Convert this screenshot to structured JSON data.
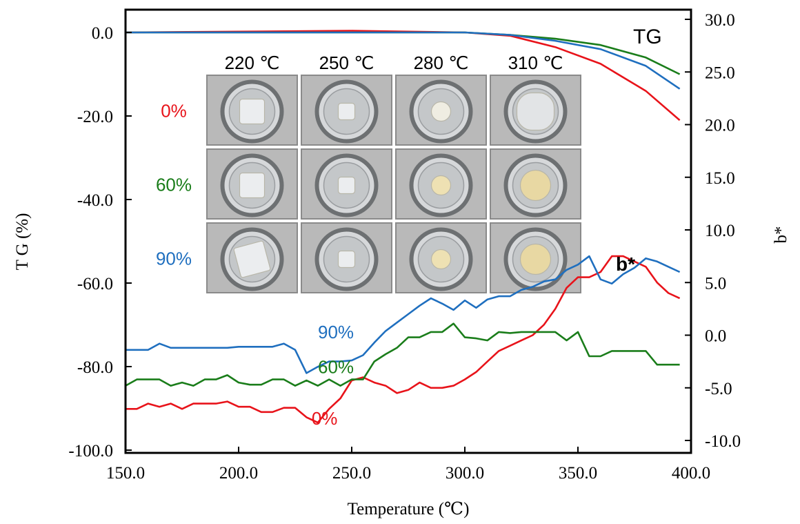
{
  "chart_data": {
    "type": "line",
    "xlabel": "Temperature (℃)",
    "ylabel_left": "T G (%)",
    "ylabel_right": "b*",
    "xlim": [
      150,
      400
    ],
    "ylim_left": [
      -100,
      5
    ],
    "ylim_right": [
      -10,
      32.1
    ],
    "x_ticks": [
      "150.0",
      "200.0",
      "250.0",
      "300.0",
      "350.0",
      "400.0"
    ],
    "y_left_ticks": [
      "0.0",
      "-20.0",
      "-40.0",
      "-60.0",
      "-80.0",
      "-100.0"
    ],
    "y_right_ticks": [
      "30.0",
      "25.0",
      "20.0",
      "15.0",
      "10.0",
      "5.0",
      "0.0",
      "-5.0",
      "-10.0"
    ],
    "annotations": {
      "tg": "TG",
      "bstar": "b*"
    },
    "tg_series": [
      {
        "name": "0%",
        "color": "#e8131a",
        "x": [
          150,
          250,
          300,
          320,
          340,
          360,
          380,
          395
        ],
        "y": [
          0,
          0.4,
          0,
          -0.8,
          -3.5,
          -7.5,
          -14,
          -21
        ]
      },
      {
        "name": "60%",
        "color": "#1a7d1a",
        "x": [
          150,
          250,
          300,
          320,
          340,
          360,
          380,
          395
        ],
        "y": [
          0,
          0,
          0,
          -0.6,
          -1.5,
          -3,
          -6,
          -10
        ]
      },
      {
        "name": "90%",
        "color": "#1f6fbf",
        "x": [
          150,
          250,
          300,
          320,
          340,
          360,
          380,
          395
        ],
        "y": [
          0,
          0,
          0,
          -0.6,
          -2,
          -4,
          -8,
          -13.5
        ]
      }
    ],
    "bstar_series": [
      {
        "name": "0%",
        "color": "#e8131a",
        "x": [
          150,
          155,
          160,
          165,
          170,
          175,
          180,
          185,
          190,
          195,
          200,
          205,
          210,
          215,
          220,
          225,
          230,
          235,
          240,
          245,
          250,
          255,
          260,
          265,
          270,
          275,
          280,
          285,
          290,
          295,
          300,
          305,
          310,
          315,
          320,
          325,
          330,
          335,
          340,
          345,
          350,
          355,
          360,
          365,
          370,
          375,
          380,
          385,
          390,
          395
        ],
        "y": [
          -7,
          -7,
          -6.5,
          -6.8,
          -6.5,
          -7,
          -6.5,
          -6.5,
          -6.5,
          -6.3,
          -6.8,
          -6.8,
          -7.3,
          -7.3,
          -6.9,
          -6.9,
          -7.8,
          -8.3,
          -7,
          -6,
          -4.3,
          -4,
          -4.5,
          -4.8,
          -5.5,
          -5.2,
          -4.5,
          -5,
          -5,
          -4.8,
          -4.2,
          -3.5,
          -2.5,
          -1.5,
          -1,
          -0.5,
          0,
          1,
          2.5,
          4.5,
          5.5,
          5.5,
          6,
          7.5,
          7.5,
          7,
          6.5,
          5,
          4,
          3.5
        ],
        "extra_note": ""
      },
      {
        "name": "60%",
        "color": "#1a7d1a",
        "x": [
          150,
          155,
          160,
          165,
          170,
          175,
          180,
          185,
          190,
          195,
          200,
          205,
          210,
          215,
          220,
          225,
          230,
          235,
          240,
          245,
          250,
          255,
          260,
          265,
          270,
          275,
          280,
          285,
          290,
          295,
          300,
          305,
          310,
          315,
          320,
          325,
          330,
          335,
          340,
          345,
          350,
          355,
          360,
          365,
          370,
          375,
          380,
          385,
          390,
          395
        ],
        "y": [
          -4.8,
          -4.2,
          -4.2,
          -4.2,
          -4.8,
          -4.5,
          -4.8,
          -4.2,
          -4.2,
          -3.8,
          -4.5,
          -4.7,
          -4.7,
          -4.2,
          -4.2,
          -4.8,
          -4.3,
          -4.8,
          -4.2,
          -4.8,
          -4.2,
          -4.2,
          -2.5,
          -1.8,
          -1.2,
          -0.2,
          -0.2,
          0.3,
          0.3,
          1.1,
          -0.2,
          -0.3,
          -0.5,
          0.3,
          0.2,
          0.3,
          0.3,
          0.3,
          0.3,
          -0.5,
          0.3,
          -2,
          -2,
          -1.5,
          -1.5,
          -1.5,
          -1.5,
          -2.8,
          -2.8,
          -2.8
        ],
        "extra_note": ""
      },
      {
        "name": "90%",
        "color": "#1f6fbf",
        "x": [
          150,
          155,
          160,
          165,
          170,
          175,
          180,
          185,
          190,
          195,
          200,
          205,
          210,
          215,
          220,
          225,
          230,
          235,
          240,
          245,
          250,
          255,
          260,
          265,
          270,
          275,
          280,
          285,
          290,
          295,
          300,
          305,
          310,
          315,
          320,
          325,
          330,
          335,
          340,
          345,
          350,
          355,
          360,
          365,
          370,
          375,
          380,
          385,
          390,
          395
        ],
        "y": [
          -1.4,
          -1.4,
          -1.4,
          -0.8,
          -1.2,
          -1.2,
          -1.2,
          -1.2,
          -1.2,
          -1.2,
          -1.1,
          -1.1,
          -1.1,
          -1.1,
          -0.8,
          -1.4,
          -3.6,
          -3,
          -2.5,
          -2.5,
          -2.4,
          -1.9,
          -0.7,
          0.4,
          1.2,
          2,
          2.8,
          3.5,
          3,
          2.4,
          3.3,
          2.6,
          3.4,
          3.7,
          3.7,
          4.3,
          4.6,
          5.1,
          5.3,
          6.2,
          6.7,
          7.5,
          5.3,
          4.9,
          5.8,
          6.4,
          7.3,
          7.0,
          6.5,
          6
        ],
        "extra_note": ""
      }
    ],
    "series_labels": [
      {
        "key": "b90",
        "text": "90%",
        "color": "#1f6fbf",
        "at": [
          243,
          -0.3
        ]
      },
      {
        "key": "b60",
        "text": "60%",
        "color": "#1a7d1a",
        "at": [
          243,
          -3.6
        ]
      },
      {
        "key": "b0",
        "text": "0%",
        "color": "#e8131a",
        "at": [
          238,
          -8.5
        ]
      }
    ],
    "inset": {
      "temps": [
        "220 ℃",
        "250 ℃",
        "280 ℃",
        "310 ℃"
      ],
      "rows": [
        {
          "label": "0%",
          "color": "#e8131a"
        },
        {
          "label": "60%",
          "color": "#1a7d1a"
        },
        {
          "label": "90%",
          "color": "#1f6fbf"
        }
      ]
    }
  }
}
